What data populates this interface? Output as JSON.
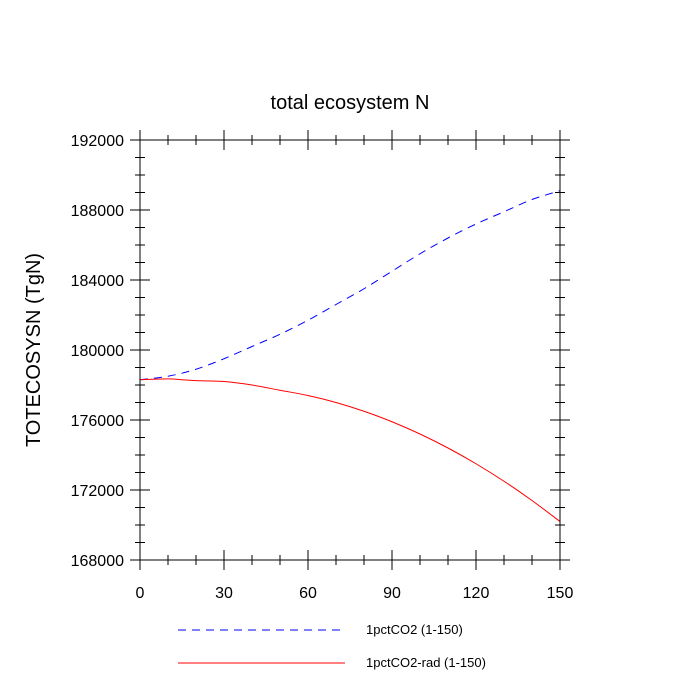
{
  "chart_data": {
    "type": "line",
    "title": "total ecosystem N",
    "xlabel": "",
    "ylabel": "TOTECOSYSN  (TgN)",
    "xlim": [
      0,
      150
    ],
    "ylim": [
      168000,
      192000
    ],
    "xticks": [
      0,
      30,
      60,
      90,
      120,
      150
    ],
    "yticks": [
      168000,
      172000,
      176000,
      180000,
      184000,
      188000,
      192000
    ],
    "grid": false,
    "legend_position": "bottom",
    "series": [
      {
        "name": "1pctCO2 (1-150)",
        "color": "#0000ff",
        "dash": "dashed",
        "x": [
          0,
          10,
          20,
          30,
          40,
          50,
          60,
          70,
          80,
          90,
          100,
          110,
          120,
          130,
          140,
          150
        ],
        "y": [
          178300,
          178500,
          178900,
          179500,
          180200,
          180900,
          181700,
          182600,
          183500,
          184500,
          185500,
          186400,
          187200,
          187900,
          188600,
          189100
        ]
      },
      {
        "name": "1pctCO2-rad (1-150)",
        "color": "#ff0000",
        "dash": "solid",
        "x": [
          0,
          10,
          15,
          20,
          30,
          40,
          50,
          60,
          70,
          80,
          90,
          100,
          110,
          120,
          130,
          140,
          150
        ],
        "y": [
          178300,
          178350,
          178300,
          178250,
          178200,
          178000,
          177700,
          177400,
          177000,
          176500,
          175900,
          175200,
          174400,
          173500,
          172500,
          171400,
          170200
        ]
      }
    ]
  }
}
